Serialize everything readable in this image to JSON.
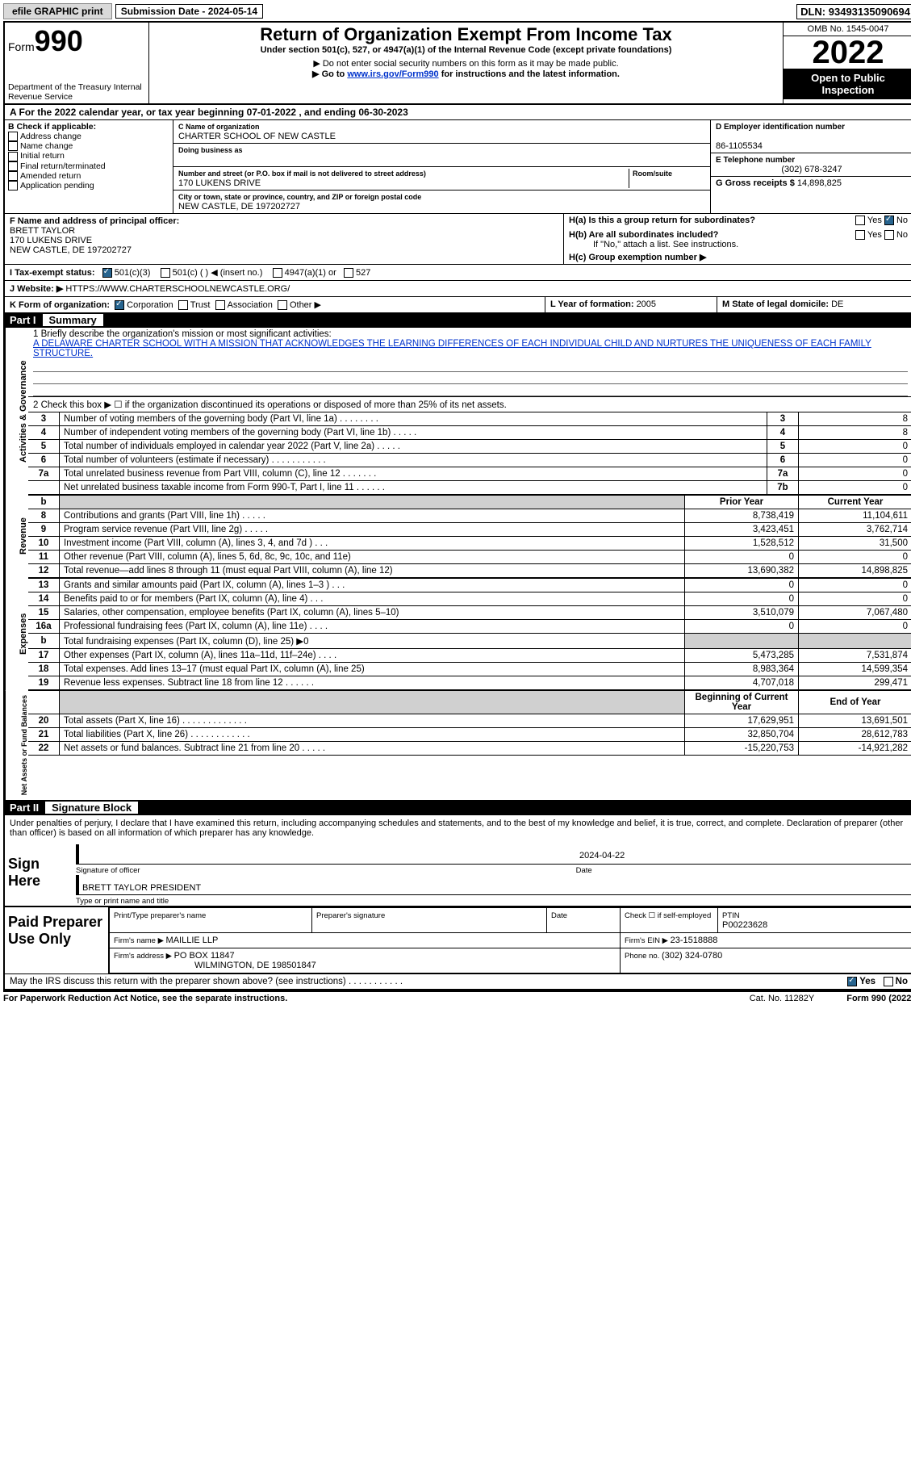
{
  "topbar": {
    "efile": "efile GRAPHIC print",
    "submission_label": "Submission Date - ",
    "submission_date": "2024-05-14",
    "dln_label": "DLN: ",
    "dln": "93493135090694"
  },
  "header": {
    "form_word": "Form",
    "form_number": "990",
    "dept": "Department of the Treasury Internal Revenue Service",
    "title": "Return of Organization Exempt From Income Tax",
    "subtitle": "Under section 501(c), 527, or 4947(a)(1) of the Internal Revenue Code (except private foundations)",
    "note1": "▶ Do not enter social security numbers on this form as it may be made public.",
    "note2_pre": "▶ Go to ",
    "note2_link": "www.irs.gov/Form990",
    "note2_post": " for instructions and the latest information.",
    "omb": "OMB No. 1545-0047",
    "year": "2022",
    "open": "Open to Public Inspection"
  },
  "lineA": "A For the 2022 calendar year, or tax year beginning 07-01-2022    , and ending 06-30-2023",
  "sectB": {
    "label": "B Check if applicable:",
    "addr": "Address change",
    "name": "Name change",
    "init": "Initial return",
    "final": "Final return/terminated",
    "amend": "Amended return",
    "app": "Application pending"
  },
  "sectC": {
    "name_lbl": "C Name of organization",
    "name": "CHARTER SCHOOL OF NEW CASTLE",
    "dba_lbl": "Doing business as",
    "dba": "",
    "street_lbl": "Number and street (or P.O. box if mail is not delivered to street address)",
    "room_lbl": "Room/suite",
    "street": "170 LUKENS DRIVE",
    "city_lbl": "City or town, state or province, country, and ZIP or foreign postal code",
    "city": "NEW CASTLE, DE  197202727"
  },
  "sectD": {
    "ein_lbl": "D Employer identification number",
    "ein": "86-1105534",
    "tel_lbl": "E Telephone number",
    "tel": "(302) 678-3247",
    "gross_lbl": "G Gross receipts $ ",
    "gross": "14,898,825"
  },
  "sectF": {
    "lbl": "F Name and address of principal officer:",
    "name": "BRETT TAYLOR",
    "addr1": "170 LUKENS DRIVE",
    "addr2": "NEW CASTLE, DE  197202727"
  },
  "sectH": {
    "ha": "H(a)  Is this a group return for subordinates?",
    "hb": "H(b)  Are all subordinates included?",
    "hb_note": "If \"No,\" attach a list. See instructions.",
    "hc": "H(c)  Group exemption number ▶",
    "yes": "Yes",
    "no": "No"
  },
  "sectI": {
    "lbl": "I    Tax-exempt status:",
    "c3": "501(c)(3)",
    "c": "501(c) (  ) ◀ (insert no.)",
    "a1": "4947(a)(1) or",
    "s527": "527"
  },
  "sectJ": {
    "lbl": "J   Website: ▶ ",
    "val": "HTTPS://WWW.CHARTERSCHOOLNEWCASTLE.ORG/"
  },
  "sectK": {
    "lbl": "K Form of organization:",
    "corp": "Corporation",
    "trust": "Trust",
    "assoc": "Association",
    "other": "Other ▶"
  },
  "sectL": {
    "lbl": "L Year of formation: ",
    "val": "2005"
  },
  "sectM": {
    "lbl": "M State of legal domicile: ",
    "val": "DE"
  },
  "part1": {
    "number": "Part I",
    "title": "Summary"
  },
  "summary": {
    "tab_ag": "Activities & Governance",
    "tab_rev": "Revenue",
    "tab_exp": "Expenses",
    "tab_net": "Net Assets or Fund Balances",
    "l1_lbl": "1   Briefly describe the organization's mission or most significant activities:",
    "l1_txt": "A DELAWARE CHARTER SCHOOL WITH A MISSION THAT ACKNOWLEDGES THE LEARNING DIFFERENCES OF EACH INDIVIDUAL CHILD AND NURTURES THE UNIQUENESS OF EACH FAMILY STRUCTURE.",
    "l2_lbl": "2   Check this box ▶ ☐ if the organization discontinued its operations or disposed of more than 25% of its net assets.",
    "rows_ag": [
      {
        "n": "3",
        "d": "Number of voting members of the governing body (Part VI, line 1a)   .    .    .    .    .    .    .    .",
        "rn": "3",
        "v": "8"
      },
      {
        "n": "4",
        "d": "Number of independent voting members of the governing body (Part VI, line 1b)  .    .    .    .    .",
        "rn": "4",
        "v": "8"
      },
      {
        "n": "5",
        "d": "Total number of individuals employed in calendar year 2022 (Part V, line 2a)   .    .    .    .    .",
        "rn": "5",
        "v": "0"
      },
      {
        "n": "6",
        "d": "Total number of volunteers (estimate if necessary)    .    .    .    .    .    .    .    .    .    .    .",
        "rn": "6",
        "v": "0"
      },
      {
        "n": "7a",
        "d": "Total unrelated business revenue from Part VIII, column (C), line 12   .    .    .    .    .    .    .",
        "rn": "7a",
        "v": "0"
      },
      {
        "n": "",
        "d": "Net unrelated business taxable income from Form 990-T, Part I, line 11   .    .    .    .    .    .",
        "rn": "7b",
        "v": "0"
      }
    ],
    "hdr_prior": "Prior Year",
    "hdr_curr": "Current Year",
    "rows_rev": [
      {
        "n": "8",
        "d": "Contributions and grants (Part VIII, line 1h)   .    .    .    .    .",
        "p": "8,738,419",
        "c": "11,104,611"
      },
      {
        "n": "9",
        "d": "Program service revenue (Part VIII, line 2g)   .    .    .    .    .",
        "p": "3,423,451",
        "c": "3,762,714"
      },
      {
        "n": "10",
        "d": "Investment income (Part VIII, column (A), lines 3, 4, and 7d )   .    .    .",
        "p": "1,528,512",
        "c": "31,500"
      },
      {
        "n": "11",
        "d": "Other revenue (Part VIII, column (A), lines 5, 6d, 8c, 9c, 10c, and 11e)",
        "p": "0",
        "c": "0"
      },
      {
        "n": "12",
        "d": "Total revenue—add lines 8 through 11 (must equal Part VIII, column (A), line 12)",
        "p": "13,690,382",
        "c": "14,898,825"
      }
    ],
    "rows_exp": [
      {
        "n": "13",
        "d": "Grants and similar amounts paid (Part IX, column (A), lines 1–3 )  .   .   .",
        "p": "0",
        "c": "0"
      },
      {
        "n": "14",
        "d": "Benefits paid to or for members (Part IX, column (A), line 4)  .   .   .",
        "p": "0",
        "c": "0"
      },
      {
        "n": "15",
        "d": "Salaries, other compensation, employee benefits (Part IX, column (A), lines 5–10)",
        "p": "3,510,079",
        "c": "7,067,480"
      },
      {
        "n": "16a",
        "d": "Professional fundraising fees (Part IX, column (A), line 11e)  .   .   .   .",
        "p": "0",
        "c": "0"
      },
      {
        "n": "b",
        "d": "Total fundraising expenses (Part IX, column (D), line 25) ▶0",
        "p": "GREY",
        "c": "GREY"
      },
      {
        "n": "17",
        "d": "Other expenses (Part IX, column (A), lines 11a–11d, 11f–24e)  .   .   .   .",
        "p": "5,473,285",
        "c": "7,531,874"
      },
      {
        "n": "18",
        "d": "Total expenses. Add lines 13–17 (must equal Part IX, column (A), line 25)",
        "p": "8,983,364",
        "c": "14,599,354"
      },
      {
        "n": "19",
        "d": "Revenue less expenses. Subtract line 18 from line 12  .   .   .   .   .   .",
        "p": "4,707,018",
        "c": "299,471"
      }
    ],
    "hdr_beg": "Beginning of Current Year",
    "hdr_end": "End of Year",
    "rows_net": [
      {
        "n": "20",
        "d": "Total assets (Part X, line 16)  .   .   .   .   .   .   .   .   .   .   .   .   .",
        "p": "17,629,951",
        "c": "13,691,501"
      },
      {
        "n": "21",
        "d": "Total liabilities (Part X, line 26)  .   .   .   .   .   .   .   .   .   .   .   .",
        "p": "32,850,704",
        "c": "28,612,783"
      },
      {
        "n": "22",
        "d": "Net assets or fund balances. Subtract line 21 from line 20  .   .   .   .   .",
        "p": "-15,220,753",
        "c": "-14,921,282"
      }
    ]
  },
  "part2": {
    "number": "Part II",
    "title": "Signature Block"
  },
  "penalties": "Under penalties of perjury, I declare that I have examined this return, including accompanying schedules and statements, and to the best of my knowledge and belief, it is true, correct, and complete. Declaration of preparer (other than officer) is based on all information of which preparer has any knowledge.",
  "sign": {
    "here": "Sign Here",
    "sigoff": "Signature of officer",
    "date": "2024-04-22",
    "name": "BRETT TAYLOR  PRESIDENT",
    "typeprint": "Type or print name and title"
  },
  "paid": {
    "title": "Paid Preparer Use Only",
    "print_lbl": "Print/Type preparer's name",
    "sig_lbl": "Preparer's signature",
    "date_lbl": "Date",
    "check_lbl": "Check ☐ if self-employed",
    "ptin_lbl": "PTIN",
    "ptin": "P00223628",
    "firm_name_lbl": "Firm's name    ▶ ",
    "firm_name": "MAILLIE LLP",
    "firm_ein_lbl": "Firm's EIN ▶ ",
    "firm_ein": "23-1518888",
    "firm_addr_lbl": "Firm's address ▶ ",
    "firm_addr1": "PO BOX 11847",
    "firm_addr2": "WILMINGTON, DE  198501847",
    "phone_lbl": "Phone no. ",
    "phone": "(302) 324-0780"
  },
  "may": {
    "q": "May the IRS discuss this return with the preparer shown above? (see instructions)   .    .    .    .    .    .    .    .    .    .    .",
    "yes": "Yes",
    "no": "No"
  },
  "footer": {
    "left": "For Paperwork Reduction Act Notice, see the separate instructions.",
    "center": "Cat. No. 11282Y",
    "right": "Form 990 (2022)"
  }
}
